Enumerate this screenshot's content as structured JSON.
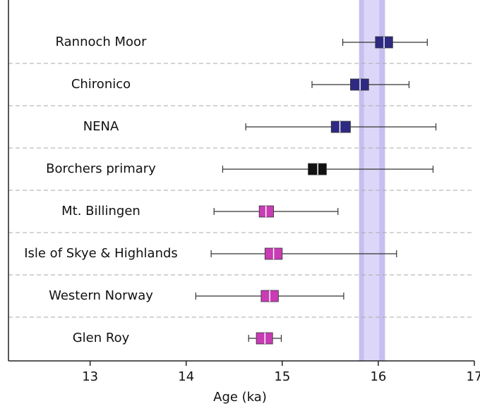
{
  "chart_data": {
    "type": "box",
    "orientation": "horizontal",
    "x_label": "Age (ka)",
    "categories": [
      "Rannoch Moor",
      "Chironico",
      "NENA",
      "Borchers primary",
      "Mt. Billingen",
      "Isle of Skye & Highlands",
      "Western Norway",
      "Glen Roy"
    ],
    "boxes": [
      {
        "low": 15.63,
        "q1": 15.97,
        "median": 16.06,
        "q3": 16.15,
        "high": 16.51
      },
      {
        "low": 15.31,
        "q1": 15.71,
        "median": 15.81,
        "q3": 15.9,
        "high": 16.32
      },
      {
        "low": 14.62,
        "q1": 15.51,
        "median": 15.6,
        "q3": 15.71,
        "high": 16.6
      },
      {
        "low": 14.38,
        "q1": 15.27,
        "median": 15.37,
        "q3": 15.46,
        "high": 16.57
      },
      {
        "low": 14.29,
        "q1": 14.76,
        "median": 14.83,
        "q3": 14.91,
        "high": 15.58
      },
      {
        "low": 14.26,
        "q1": 14.82,
        "median": 14.91,
        "q3": 15.0,
        "high": 16.19
      },
      {
        "low": 14.1,
        "q1": 14.78,
        "median": 14.87,
        "q3": 14.96,
        "high": 15.64
      },
      {
        "low": 14.65,
        "q1": 14.73,
        "median": 14.82,
        "q3": 14.9,
        "high": 14.99
      }
    ],
    "colors": [
      "#2e2a82",
      "#2e2a82",
      "#2e2a82",
      "#111111",
      "#c83cb4",
      "#c83cb4",
      "#c83cb4",
      "#c83cb4"
    ],
    "reference_band": {
      "from": 15.8,
      "to": 16.07,
      "color": "#c6bff0"
    },
    "reference_band_inner": {
      "from": 15.85,
      "to": 16.01,
      "color": "#dcd7f8"
    },
    "xlim": [
      12.15,
      17
    ],
    "xticks": [
      13,
      14,
      15,
      16,
      17
    ],
    "row_separators": true
  }
}
